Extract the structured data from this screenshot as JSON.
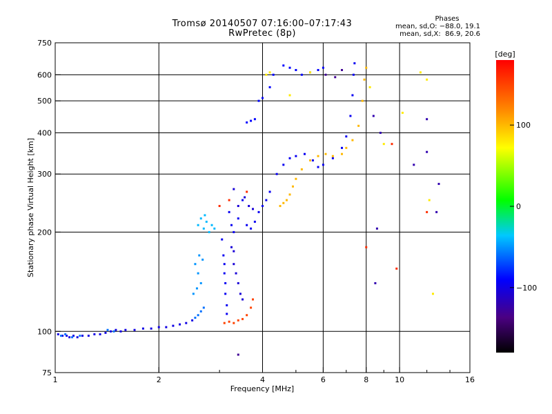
{
  "header": {
    "title": "Tromsø 20140507 07:16:00–07:17:43",
    "subtitle": "RwPretec (8p)"
  },
  "phases_box": {
    "heading": "Phases",
    "line_o": "mean, sd,O: −88.0, 19.1",
    "line_x": "mean, sd,X:  86.9, 20.6"
  },
  "colorbar": {
    "label": "[deg]",
    "ticks": [
      {
        "value": 100,
        "label": "100"
      },
      {
        "value": 0,
        "label": "0"
      },
      {
        "value": -100,
        "label": "−100"
      }
    ],
    "range": [
      -180,
      180
    ]
  },
  "chart_data": {
    "type": "scatter",
    "title": "Tromsø 20140507 07:16:00–07:17:43",
    "subtitle": "RwPretec (8p)",
    "xlabel": "Frequency [MHz]",
    "ylabel": "Stationary phase Virtual Height [km]",
    "x_scale": "log",
    "y_scale": "log",
    "xlim": [
      1,
      16
    ],
    "ylim": [
      75,
      750
    ],
    "x_ticks": [
      {
        "value": 1,
        "label": "1"
      },
      {
        "value": 2,
        "label": "2"
      },
      {
        "value": 4,
        "label": "4"
      },
      {
        "value": 6,
        "label": "6"
      },
      {
        "value": 8,
        "label": "8"
      },
      {
        "value": 10,
        "label": "10"
      },
      {
        "value": 16,
        "label": "16"
      }
    ],
    "x_minor_ticks": [
      3,
      5,
      7,
      9,
      12,
      14
    ],
    "y_ticks": [
      {
        "value": 75,
        "label": "75"
      },
      {
        "value": 100,
        "label": "100"
      },
      {
        "value": 200,
        "label": "200"
      },
      {
        "value": 300,
        "label": "300"
      },
      {
        "value": 400,
        "label": "400"
      },
      {
        "value": 500,
        "label": "500"
      },
      {
        "value": 600,
        "label": "600"
      },
      {
        "value": 750,
        "label": "750"
      }
    ],
    "grid_x": [
      2,
      4,
      6,
      8,
      10
    ],
    "grid_y": [
      100,
      200,
      300,
      400,
      500,
      600
    ],
    "grid": true,
    "color_meaning": "phase [deg]",
    "series": [
      {
        "phase": -100,
        "points": [
          [
            1.02,
            98
          ],
          [
            1.05,
            97
          ],
          [
            1.08,
            97
          ],
          [
            1.1,
            96
          ],
          [
            1.13,
            97
          ],
          [
            1.16,
            96
          ],
          [
            1.2,
            97
          ],
          [
            1.25,
            97
          ],
          [
            1.3,
            98
          ],
          [
            1.35,
            98
          ],
          [
            1.4,
            99
          ],
          [
            1.45,
            100
          ],
          [
            1.5,
            101
          ],
          [
            1.55,
            100
          ],
          [
            1.6,
            101
          ],
          [
            1.7,
            101
          ],
          [
            1.8,
            102
          ],
          [
            1.9,
            102
          ],
          [
            2.0,
            103
          ],
          [
            2.1,
            103
          ],
          [
            2.2,
            104
          ],
          [
            2.3,
            105
          ],
          [
            2.4,
            106
          ],
          [
            2.5,
            108
          ]
        ]
      },
      {
        "phase": -60,
        "points": [
          [
            1.04,
            97
          ],
          [
            1.07,
            98
          ],
          [
            1.12,
            96
          ],
          [
            1.18,
            97
          ],
          [
            1.42,
            101
          ],
          [
            1.48,
            100
          ],
          [
            2.55,
            110
          ],
          [
            2.6,
            112
          ],
          [
            2.65,
            115
          ],
          [
            2.7,
            118
          ]
        ]
      },
      {
        "phase": -50,
        "points": [
          [
            2.55,
            160
          ],
          [
            2.6,
            150
          ],
          [
            2.62,
            170
          ],
          [
            2.65,
            140
          ],
          [
            2.58,
            135
          ],
          [
            2.52,
            130
          ],
          [
            2.68,
            165
          ]
        ]
      },
      {
        "phase": -40,
        "points": [
          [
            2.6,
            210
          ],
          [
            2.65,
            220
          ],
          [
            2.7,
            205
          ],
          [
            2.75,
            215
          ],
          [
            2.8,
            200
          ],
          [
            2.9,
            205
          ],
          [
            2.85,
            210
          ],
          [
            2.72,
            225
          ]
        ]
      },
      {
        "phase": -95,
        "points": [
          [
            3.05,
            190
          ],
          [
            3.08,
            170
          ],
          [
            3.1,
            160
          ],
          [
            3.1,
            150
          ],
          [
            3.12,
            140
          ],
          [
            3.12,
            130
          ],
          [
            3.15,
            120
          ],
          [
            3.15,
            113
          ],
          [
            3.2,
            230
          ],
          [
            3.25,
            210
          ],
          [
            3.3,
            200
          ],
          [
            3.4,
            220
          ],
          [
            3.5,
            250
          ],
          [
            3.6,
            210
          ],
          [
            3.7,
            205
          ],
          [
            3.8,
            215
          ],
          [
            3.9,
            230
          ],
          [
            4.0,
            240
          ],
          [
            4.1,
            250
          ],
          [
            4.2,
            265
          ],
          [
            4.4,
            300
          ],
          [
            4.6,
            320
          ],
          [
            4.8,
            335
          ],
          [
            5.0,
            340
          ],
          [
            5.3,
            345
          ],
          [
            5.6,
            330
          ],
          [
            5.8,
            315
          ],
          [
            6.0,
            320
          ],
          [
            6.4,
            335
          ],
          [
            6.8,
            360
          ],
          [
            7.0,
            390
          ],
          [
            7.2,
            450
          ],
          [
            7.3,
            520
          ],
          [
            7.35,
            600
          ],
          [
            7.4,
            650
          ]
        ]
      },
      {
        "phase": -105,
        "points": [
          [
            3.3,
            160
          ],
          [
            3.4,
            140
          ],
          [
            3.45,
            130
          ],
          [
            3.5,
            125
          ],
          [
            3.35,
            150
          ],
          [
            3.25,
            180
          ],
          [
            3.3,
            175
          ],
          [
            3.4,
            240
          ],
          [
            3.3,
            270
          ],
          [
            3.55,
            255
          ],
          [
            3.65,
            240
          ],
          [
            3.75,
            235
          ]
        ]
      },
      {
        "phase": -90,
        "points": [
          [
            3.6,
            430
          ],
          [
            3.7,
            435
          ],
          [
            3.8,
            440
          ],
          [
            3.9,
            500
          ],
          [
            4.0,
            510
          ],
          [
            4.2,
            550
          ],
          [
            4.3,
            600
          ],
          [
            4.6,
            640
          ],
          [
            4.8,
            630
          ],
          [
            5.0,
            620
          ],
          [
            5.2,
            600
          ],
          [
            5.5,
            610
          ],
          [
            5.8,
            620
          ],
          [
            6.0,
            630
          ]
        ]
      },
      {
        "phase": 100,
        "points": [
          [
            4.5,
            240
          ],
          [
            4.6,
            245
          ],
          [
            4.7,
            250
          ],
          [
            4.8,
            260
          ],
          [
            4.9,
            275
          ],
          [
            5.0,
            290
          ],
          [
            5.2,
            310
          ],
          [
            5.5,
            330
          ],
          [
            5.8,
            340
          ],
          [
            6.1,
            345
          ],
          [
            6.4,
            340
          ],
          [
            6.8,
            345
          ],
          [
            7.0,
            360
          ],
          [
            7.3,
            380
          ],
          [
            7.6,
            420
          ],
          [
            7.8,
            500
          ],
          [
            7.9,
            580
          ],
          [
            8.0,
            630
          ]
        ]
      },
      {
        "phase": 150,
        "points": [
          [
            3.1,
            106
          ],
          [
            3.2,
            107
          ],
          [
            3.3,
            106
          ],
          [
            3.4,
            108
          ],
          [
            3.5,
            109
          ],
          [
            3.6,
            112
          ],
          [
            3.7,
            118
          ],
          [
            3.75,
            125
          ]
        ]
      },
      {
        "phase": 80,
        "points": [
          [
            4.1,
            600
          ],
          [
            4.2,
            610
          ],
          [
            4.8,
            520
          ],
          [
            5.5,
            610
          ],
          [
            8.2,
            550
          ],
          [
            9.0,
            370
          ],
          [
            10.2,
            460
          ],
          [
            11.5,
            610
          ],
          [
            12.0,
            580
          ],
          [
            12.2,
            250
          ],
          [
            12.5,
            130
          ]
        ]
      },
      {
        "phase": 160,
        "points": [
          [
            3.0,
            240
          ],
          [
            3.2,
            250
          ],
          [
            3.6,
            265
          ],
          [
            8.0,
            180
          ],
          [
            9.5,
            370
          ],
          [
            9.8,
            155
          ],
          [
            12.0,
            230
          ]
        ]
      },
      {
        "phase": -120,
        "points": [
          [
            8.4,
            450
          ],
          [
            8.5,
            140
          ],
          [
            8.8,
            400
          ],
          [
            11.0,
            320
          ],
          [
            12.0,
            440
          ],
          [
            12.0,
            350
          ],
          [
            12.8,
            230
          ],
          [
            13.0,
            280
          ],
          [
            8.6,
            205
          ]
        ]
      },
      {
        "phase": -130,
        "points": [
          [
            3.4,
            85
          ],
          [
            6.8,
            620
          ],
          [
            6.5,
            590
          ],
          [
            6.1,
            600
          ]
        ]
      }
    ]
  }
}
